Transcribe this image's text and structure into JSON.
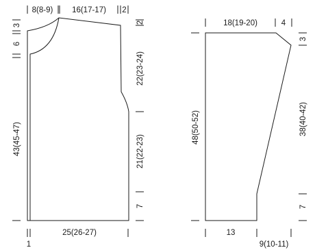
{
  "front": {
    "top": {
      "left": "8(8-9)",
      "mid": "16(17-17)",
      "right": "2"
    },
    "left_side": {
      "top": "3",
      "armhole": "6",
      "total": "43(45-47)"
    },
    "right_side": {
      "top": "2",
      "upper": "22(23-24)",
      "lower": "21(22-23)",
      "bottom": "7"
    },
    "bottom": {
      "width": "25(26-27)",
      "edge": "1"
    }
  },
  "sleeve": {
    "top": {
      "width": "18(19-20)",
      "right": "4"
    },
    "left_side": {
      "total": "48(50-52)"
    },
    "right_side": {
      "top": "3",
      "slope": "38(40-42)",
      "bottom": "7"
    },
    "bottom": {
      "left": "13",
      "right": "9(10-11)"
    }
  }
}
